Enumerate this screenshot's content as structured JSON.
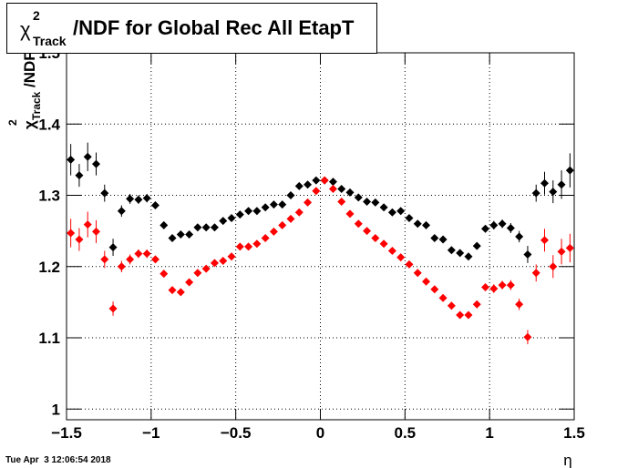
{
  "chart_data": {
    "type": "scatter",
    "title": {
      "symbol": "χ",
      "superscript": "2",
      "subscript": "Track",
      "text": "/NDF for Global Rec All EtapT"
    },
    "y_label": {
      "symbol": "χ",
      "superscript": "2",
      "subscript": "Track",
      "text": "/NDF"
    },
    "x_label": "η",
    "timestamp": "Tue Apr  3 12:06:54 2018",
    "x": [
      -1.475,
      -1.425,
      -1.375,
      -1.325,
      -1.275,
      -1.225,
      -1.175,
      -1.125,
      -1.075,
      -1.025,
      -0.975,
      -0.925,
      -0.875,
      -0.825,
      -0.775,
      -0.725,
      -0.675,
      -0.625,
      -0.575,
      -0.525,
      -0.475,
      -0.425,
      -0.375,
      -0.325,
      -0.275,
      -0.225,
      -0.175,
      -0.125,
      -0.075,
      -0.025,
      0.025,
      0.075,
      0.125,
      0.175,
      0.225,
      0.275,
      0.325,
      0.375,
      0.425,
      0.475,
      0.525,
      0.575,
      0.625,
      0.675,
      0.725,
      0.775,
      0.825,
      0.875,
      0.925,
      0.975,
      1.025,
      1.075,
      1.125,
      1.175,
      1.225,
      1.275,
      1.325,
      1.375,
      1.425,
      1.475
    ],
    "series": [
      {
        "color": "#000000",
        "values": [
          1.35,
          1.328,
          1.354,
          1.344,
          1.303,
          1.227,
          1.278,
          1.295,
          1.294,
          1.296,
          1.286,
          1.258,
          1.24,
          1.245,
          1.245,
          1.255,
          1.255,
          1.255,
          1.264,
          1.268,
          1.273,
          1.278,
          1.278,
          1.283,
          1.287,
          1.287,
          1.3,
          1.313,
          1.315,
          1.321,
          1.321,
          1.319,
          1.309,
          1.304,
          1.297,
          1.291,
          1.29,
          1.283,
          1.276,
          1.278,
          1.268,
          1.26,
          1.258,
          1.24,
          1.238,
          1.223,
          1.219,
          1.214,
          1.229,
          1.253,
          1.258,
          1.26,
          1.254,
          1.242,
          1.217,
          1.303,
          1.317,
          1.305,
          1.315,
          1.335
        ],
        "errors": [
          0.022,
          0.016,
          0.02,
          0.016,
          0.012,
          0.012,
          0.008,
          0.007,
          0.006,
          0.006,
          0.005,
          0.005,
          0.004,
          0.004,
          0.004,
          0.004,
          0.004,
          0.003,
          0.003,
          0.003,
          0.003,
          0.003,
          0.003,
          0.003,
          0.003,
          0.003,
          0.003,
          0.003,
          0.003,
          0.003,
          0.003,
          0.003,
          0.003,
          0.003,
          0.003,
          0.003,
          0.003,
          0.003,
          0.003,
          0.003,
          0.003,
          0.003,
          0.003,
          0.003,
          0.004,
          0.004,
          0.004,
          0.004,
          0.005,
          0.005,
          0.006,
          0.006,
          0.007,
          0.008,
          0.012,
          0.012,
          0.016,
          0.016,
          0.02,
          0.024
        ]
      },
      {
        "color": "#ff0000",
        "values": [
          1.247,
          1.238,
          1.259,
          1.249,
          1.21,
          1.141,
          1.2,
          1.21,
          1.218,
          1.218,
          1.21,
          1.19,
          1.167,
          1.164,
          1.178,
          1.191,
          1.197,
          1.205,
          1.208,
          1.214,
          1.228,
          1.228,
          1.232,
          1.24,
          1.249,
          1.258,
          1.267,
          1.276,
          1.29,
          1.306,
          1.321,
          1.309,
          1.291,
          1.274,
          1.26,
          1.25,
          1.24,
          1.232,
          1.222,
          1.213,
          1.203,
          1.191,
          1.179,
          1.168,
          1.156,
          1.145,
          1.132,
          1.132,
          1.147,
          1.171,
          1.169,
          1.174,
          1.174,
          1.147,
          1.101,
          1.191,
          1.237,
          1.2,
          1.221,
          1.226
        ],
        "errors": [
          0.02,
          0.016,
          0.018,
          0.016,
          0.012,
          0.01,
          0.008,
          0.007,
          0.006,
          0.006,
          0.005,
          0.005,
          0.004,
          0.004,
          0.004,
          0.004,
          0.004,
          0.003,
          0.003,
          0.003,
          0.003,
          0.003,
          0.003,
          0.003,
          0.003,
          0.003,
          0.003,
          0.003,
          0.003,
          0.003,
          0.003,
          0.003,
          0.003,
          0.003,
          0.003,
          0.003,
          0.003,
          0.003,
          0.003,
          0.003,
          0.003,
          0.003,
          0.003,
          0.003,
          0.004,
          0.004,
          0.004,
          0.004,
          0.005,
          0.005,
          0.006,
          0.006,
          0.007,
          0.008,
          0.01,
          0.012,
          0.016,
          0.016,
          0.018,
          0.02
        ]
      }
    ],
    "xlim": [
      -1.5,
      1.5
    ],
    "ylim": [
      0.985,
      1.5
    ],
    "xticks": [
      {
        "value": -1.5,
        "label": "−1.5"
      },
      {
        "value": -1,
        "label": "−1"
      },
      {
        "value": -0.5,
        "label": "−0.5"
      },
      0,
      0.5,
      1,
      1.5
    ],
    "yticks": [
      1,
      1.1,
      1.2,
      1.3,
      1.4,
      1.5
    ],
    "grid": true
  }
}
